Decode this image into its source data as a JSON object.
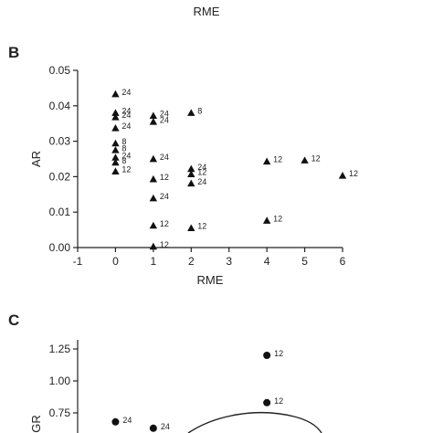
{
  "top_fragment": {
    "xlabel": "RME"
  },
  "chart_data": [
    {
      "panel": "B",
      "type": "scatter",
      "xlabel": "RME",
      "ylabel": "AR",
      "xlim": [
        -1,
        6
      ],
      "ylim": [
        0,
        0.05
      ],
      "xticks": [
        "-1",
        "0",
        "1",
        "2",
        "3",
        "4",
        "5",
        "6"
      ],
      "yticks": [
        "0.00",
        "0.01",
        "0.02",
        "0.03",
        "0.04",
        "0.05"
      ],
      "marker": "triangle",
      "points": [
        {
          "x": 0,
          "y": 0.0433,
          "label": "24"
        },
        {
          "x": 0,
          "y": 0.038,
          "label": "24"
        },
        {
          "x": 0,
          "y": 0.0368,
          "label": "24"
        },
        {
          "x": 0,
          "y": 0.0337,
          "label": "24"
        },
        {
          "x": 0,
          "y": 0.0294,
          "label": "8"
        },
        {
          "x": 0,
          "y": 0.0275,
          "label": "8"
        },
        {
          "x": 0,
          "y": 0.0254,
          "label": "24"
        },
        {
          "x": 0,
          "y": 0.024,
          "label": "8"
        },
        {
          "x": 0,
          "y": 0.0215,
          "label": "12"
        },
        {
          "x": 1,
          "y": 0.0372,
          "label": "24"
        },
        {
          "x": 1,
          "y": 0.0355,
          "label": "24"
        },
        {
          "x": 1,
          "y": 0.025,
          "label": "24"
        },
        {
          "x": 1,
          "y": 0.0193,
          "label": "12"
        },
        {
          "x": 1,
          "y": 0.0139,
          "label": "24"
        },
        {
          "x": 1,
          "y": 0.0062,
          "label": "12"
        },
        {
          "x": 1,
          "y": 0.0003,
          "label": "12"
        },
        {
          "x": 2,
          "y": 0.038,
          "label": "8"
        },
        {
          "x": 2,
          "y": 0.0222,
          "label": "24"
        },
        {
          "x": 2,
          "y": 0.0207,
          "label": "12"
        },
        {
          "x": 2,
          "y": 0.0181,
          "label": "24"
        },
        {
          "x": 2,
          "y": 0.0055,
          "label": "12"
        },
        {
          "x": 4,
          "y": 0.0243,
          "label": "12"
        },
        {
          "x": 4,
          "y": 0.0076,
          "label": "12"
        },
        {
          "x": 5,
          "y": 0.0246,
          "label": "12"
        },
        {
          "x": 6,
          "y": 0.0203,
          "label": "12"
        }
      ]
    },
    {
      "panel": "C",
      "type": "scatter",
      "ylabel": "GR",
      "ylim": [
        0.5,
        1.25
      ],
      "yticks": [
        "1.25",
        "1.00",
        "0.75"
      ],
      "marker": "circle",
      "fit": "curve",
      "points": [
        {
          "x": 4,
          "y": 1.2,
          "label": "12"
        },
        {
          "x": 4,
          "y": 0.83,
          "label": "12"
        },
        {
          "x": 0,
          "y": 0.68,
          "label": "24"
        },
        {
          "x": 1,
          "y": 0.63,
          "label": "24"
        }
      ]
    }
  ]
}
